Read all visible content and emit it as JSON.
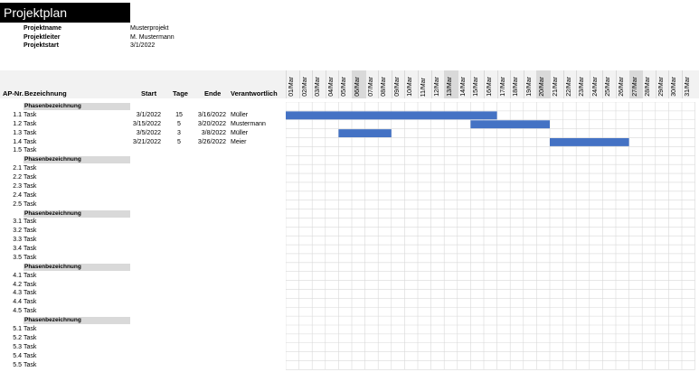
{
  "title": "Projektplan",
  "meta": [
    {
      "label": "Projektname",
      "value": "Musterprojekt"
    },
    {
      "label": "Projektleiter",
      "value": "M. Mustermann"
    },
    {
      "label": "Projektstart",
      "value": "3/1/2022"
    }
  ],
  "columns": {
    "apnr": "AP-Nr.",
    "bezeichnung": "Bezeichnung",
    "start": "Start",
    "tage": "Tage",
    "ende": "Ende",
    "verantwortlich": "Verantwortlich"
  },
  "days": [
    "01/Mar",
    "02/Mar",
    "03/Mar",
    "04/Mar",
    "05/Mar",
    "06/Mar",
    "07/Mar",
    "08/Mar",
    "09/Mar",
    "10/Mar",
    "11/Mar",
    "12/Mar",
    "13/Mar",
    "14/Mar",
    "15/Mar",
    "16/Mar",
    "17/Mar",
    "18/Mar",
    "19/Mar",
    "20/Mar",
    "21/Mar",
    "22/Mar",
    "23/Mar",
    "24/Mar",
    "25/Mar",
    "26/Mar",
    "27/Mar",
    "28/Mar",
    "29/Mar",
    "30/Mar",
    "31/Mar"
  ],
  "weekend_days": [
    "06/Mar",
    "13/Mar",
    "20/Mar",
    "27/Mar"
  ],
  "bar_color": "#4472c4",
  "phases": [
    {
      "name": "Phasenbezeichnung",
      "tasks": [
        {
          "nr": "1.1",
          "name": "Task",
          "start": "3/1/2022",
          "tage": "15",
          "ende": "3/16/2022",
          "verantwortlich": "Müller",
          "bar_start_day": 1,
          "bar_end_day": 16
        },
        {
          "nr": "1.2",
          "name": "Task",
          "start": "3/15/2022",
          "tage": "5",
          "ende": "3/20/2022",
          "verantwortlich": "Mustermann",
          "bar_start_day": 15,
          "bar_end_day": 20
        },
        {
          "nr": "1.3",
          "name": "Task",
          "start": "3/5/2022",
          "tage": "3",
          "ende": "3/8/2022",
          "verantwortlich": "Müller",
          "bar_start_day": 5,
          "bar_end_day": 8
        },
        {
          "nr": "1.4",
          "name": "Task",
          "start": "3/21/2022",
          "tage": "5",
          "ende": "3/26/2022",
          "verantwortlich": "Meier",
          "bar_start_day": 21,
          "bar_end_day": 26
        },
        {
          "nr": "1.5",
          "name": "Task"
        }
      ]
    },
    {
      "name": "Phasenbezeichnung",
      "tasks": [
        {
          "nr": "2.1",
          "name": "Task"
        },
        {
          "nr": "2.2",
          "name": "Task"
        },
        {
          "nr": "2.3",
          "name": "Task"
        },
        {
          "nr": "2.4",
          "name": "Task"
        },
        {
          "nr": "2.5",
          "name": "Task"
        }
      ]
    },
    {
      "name": "Phasenbezeichnung",
      "tasks": [
        {
          "nr": "3.1",
          "name": "Task"
        },
        {
          "nr": "3.2",
          "name": "Task"
        },
        {
          "nr": "3.3",
          "name": "Task"
        },
        {
          "nr": "3.4",
          "name": "Task"
        },
        {
          "nr": "3.5",
          "name": "Task"
        }
      ]
    },
    {
      "name": "Phasenbezeichnung",
      "tasks": [
        {
          "nr": "4.1",
          "name": "Task"
        },
        {
          "nr": "4.2",
          "name": "Task"
        },
        {
          "nr": "4.3",
          "name": "Task"
        },
        {
          "nr": "4.4",
          "name": "Task"
        },
        {
          "nr": "4.5",
          "name": "Task"
        }
      ]
    },
    {
      "name": "Phasenbezeichnung",
      "tasks": [
        {
          "nr": "5.1",
          "name": "Task"
        },
        {
          "nr": "5.2",
          "name": "Task"
        },
        {
          "nr": "5.3",
          "name": "Task"
        },
        {
          "nr": "5.4",
          "name": "Task"
        },
        {
          "nr": "5.5",
          "name": "Task"
        }
      ]
    }
  ]
}
